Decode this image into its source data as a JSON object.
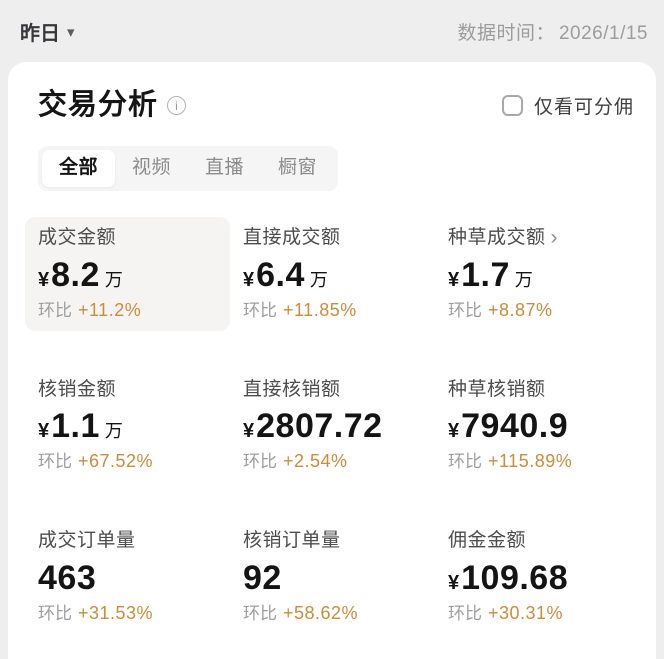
{
  "topbar": {
    "date_selector": "昨日",
    "data_time_label": "数据时间：",
    "data_time_value": "2026/1/15"
  },
  "card": {
    "title": "交易分析",
    "checkbox_label": "仅看可分佣",
    "checkbox_checked": false,
    "tabs": [
      {
        "name": "all",
        "label": "全部",
        "selected": true
      },
      {
        "name": "video",
        "label": "视频",
        "selected": false
      },
      {
        "name": "live",
        "label": "直播",
        "selected": false
      },
      {
        "name": "showcase",
        "label": "橱窗",
        "selected": false
      }
    ]
  },
  "metrics": [
    {
      "name": "deal-amount",
      "label": "成交金额",
      "prefix": "¥",
      "value": "8.2",
      "suffix": "万",
      "ratio_label": "环比",
      "ratio": "+11.2%",
      "highlighted": true,
      "has_arrow": false
    },
    {
      "name": "direct-deal-amount",
      "label": "直接成交额",
      "prefix": "¥",
      "value": "6.4",
      "suffix": "万",
      "ratio_label": "环比",
      "ratio": "+11.85%",
      "highlighted": false,
      "has_arrow": false
    },
    {
      "name": "seeding-deal-amount",
      "label": "种草成交额",
      "prefix": "¥",
      "value": "1.7",
      "suffix": "万",
      "ratio_label": "环比",
      "ratio": "+8.87%",
      "highlighted": false,
      "has_arrow": true
    },
    {
      "name": "redeem-amount",
      "label": "核销金额",
      "prefix": "¥",
      "value": "1.1",
      "suffix": "万",
      "ratio_label": "环比",
      "ratio": "+67.52%",
      "highlighted": false,
      "has_arrow": false
    },
    {
      "name": "direct-redeem-amount",
      "label": "直接核销额",
      "prefix": "¥",
      "value": "2807.72",
      "suffix": "",
      "ratio_label": "环比",
      "ratio": "+2.54%",
      "highlighted": false,
      "has_arrow": false
    },
    {
      "name": "seeding-redeem-amount",
      "label": "种草核销额",
      "prefix": "¥",
      "value": "7940.9",
      "suffix": "",
      "ratio_label": "环比",
      "ratio": "+115.89%",
      "highlighted": false,
      "has_arrow": false
    },
    {
      "name": "deal-order-count",
      "label": "成交订单量",
      "prefix": "",
      "value": "463",
      "suffix": "",
      "ratio_label": "环比",
      "ratio": "+31.53%",
      "highlighted": false,
      "has_arrow": false
    },
    {
      "name": "redeem-order-count",
      "label": "核销订单量",
      "prefix": "",
      "value": "92",
      "suffix": "",
      "ratio_label": "环比",
      "ratio": "+58.62%",
      "highlighted": false,
      "has_arrow": false
    },
    {
      "name": "commission-amount",
      "label": "佣金金额",
      "prefix": "¥",
      "value": "109.68",
      "suffix": "",
      "ratio_label": "环比",
      "ratio": "+30.31%",
      "highlighted": false,
      "has_arrow": false
    }
  ],
  "icons": {
    "caret_down": "▾",
    "info": "i",
    "chevron_right": "›"
  },
  "colors": {
    "page_bg": "#eeeeee",
    "card_bg": "#ffffff",
    "highlight_bg": "#f5f4f2",
    "accent_orange": "#ce8b3a"
  }
}
